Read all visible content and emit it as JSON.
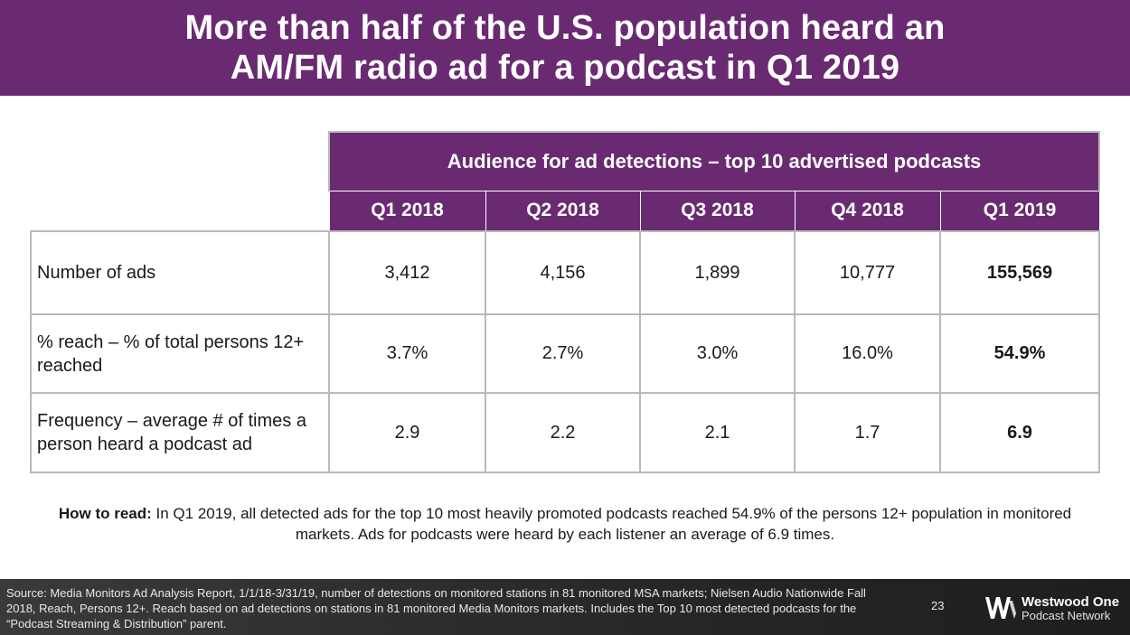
{
  "slide": {
    "title_lines": [
      "More than half of the U.S. population heard an",
      "AM/FM radio ad for a podcast in Q1 2019"
    ]
  },
  "table": {
    "group_header": "Audience for ad detections – top 10 advertised podcasts",
    "columns": [
      "Q1 2018",
      "Q2 2018",
      "Q3 2018",
      "Q4 2018",
      "Q1 2019"
    ],
    "rows": [
      {
        "label": "Number of ads",
        "values": [
          "3,412",
          "4,156",
          "1,899",
          "10,777",
          "155,569"
        ]
      },
      {
        "label": "% reach – % of total persons 12+ reached",
        "values": [
          "3.7%",
          "2.7%",
          "3.0%",
          "16.0%",
          "54.9%"
        ]
      },
      {
        "label": "Frequency – average # of times a person heard a podcast ad",
        "values": [
          "2.9",
          "2.2",
          "2.1",
          "1.7",
          "6.9"
        ]
      }
    ]
  },
  "how_to": {
    "lead": "How to read:",
    "text": " In Q1 2019, all detected ads for the top 10 most heavily promoted podcasts reached 54.9% of the persons 12+ population in monitored markets. Ads for podcasts were heard by each listener an average of 6.9 times."
  },
  "footer": {
    "source": "Source: Media Monitors Ad Analysis Report, 1/1/18-3/31/19, number of detections on monitored stations in 81 monitored MSA markets; Nielsen Audio Nationwide Fall 2018, Reach, Persons 12+. Reach based on ad detections on stations in 81 monitored Media Monitors markets. Includes the Top 10 most detected podcasts for the “Podcast Streaming & Distribution” parent.",
    "page_number": "23",
    "logo_line1": "Westwood One",
    "logo_line2": "Podcast Network"
  },
  "colors": {
    "brand_purple": "#6a2a72",
    "border_gray": "#b9b9b9",
    "footer_dark": "#2b2b2b"
  }
}
